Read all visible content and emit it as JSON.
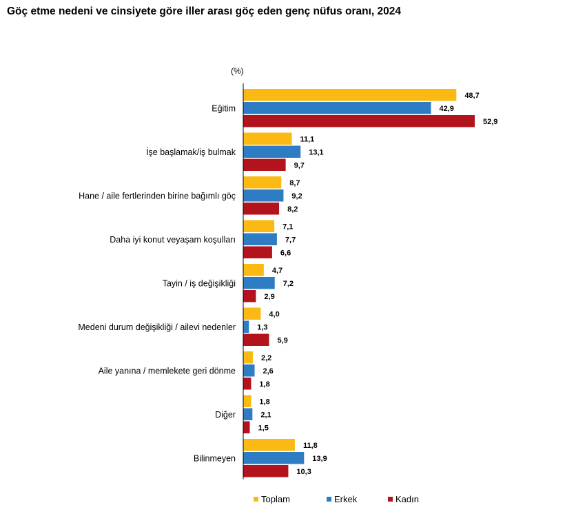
{
  "title": "Göç etme nedeni ve cinsiyete göre iller arası göç eden genç nüfus oranı, 2024",
  "chart_data": {
    "type": "bar",
    "orientation": "horizontal",
    "unit": "(%)",
    "categories": [
      "Eğitim",
      "İşe başlamak/iş bulmak",
      "Hane / aile fertlerinden birine bağımlı göç",
      "Daha iyi konut veyaşam koşulları",
      "Tayin / iş değişikliği",
      "Medeni durum değişikliği / ailevi nedenler",
      "Aile yanına / memlekete geri dönme",
      "Diğer",
      "Bilinmeyen"
    ],
    "series": [
      {
        "name": "Toplam",
        "color": "#FBBA13",
        "values": [
          48.7,
          11.1,
          8.7,
          7.1,
          4.7,
          4.0,
          2.2,
          1.8,
          11.8
        ],
        "labels": [
          "48,7",
          "11,1",
          "8,7",
          "7,1",
          "4,7",
          "4,0",
          "2,2",
          "1,8",
          "11,8"
        ]
      },
      {
        "name": "Erkek",
        "color": "#2E7CC4",
        "values": [
          42.9,
          13.1,
          9.2,
          7.7,
          7.2,
          1.3,
          2.6,
          2.1,
          13.9
        ],
        "labels": [
          "42,9",
          "13,1",
          "9,2",
          "7,7",
          "7,2",
          "1,3",
          "2,6",
          "2,1",
          "13,9"
        ]
      },
      {
        "name": "Kadın",
        "color": "#B3131C",
        "values": [
          52.9,
          9.7,
          8.2,
          6.6,
          2.9,
          5.9,
          1.8,
          1.5,
          10.3
        ],
        "labels": [
          "52,9",
          "9,7",
          "8,2",
          "6,6",
          "2,9",
          "5,9",
          "1,8",
          "1,5",
          "10,3"
        ]
      }
    ],
    "xlim": [
      0,
      55
    ],
    "grid": false,
    "legend": "bottom"
  }
}
